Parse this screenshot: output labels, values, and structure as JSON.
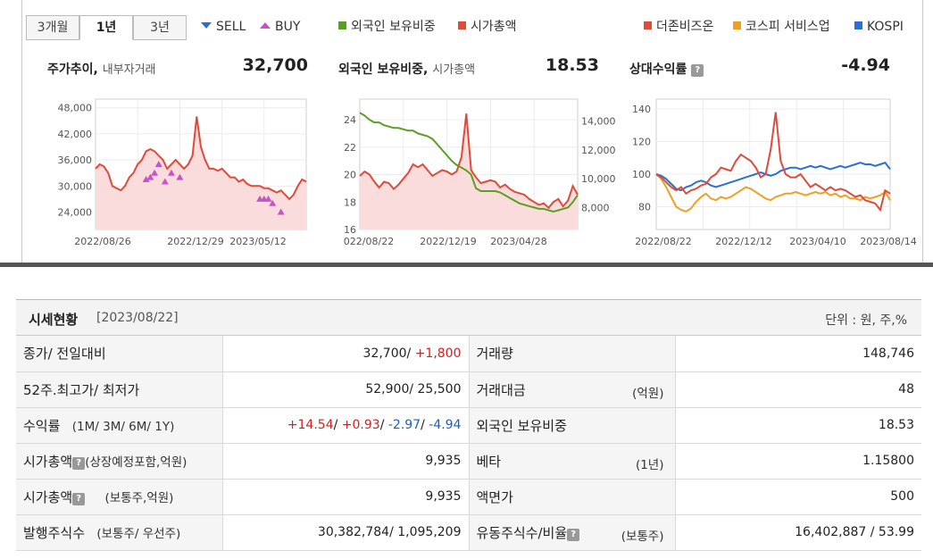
{
  "tabs": [
    {
      "label": "3개월",
      "active": false
    },
    {
      "label": "1년",
      "active": true
    },
    {
      "label": "3년",
      "active": false
    }
  ],
  "legend_left": [
    {
      "label": "SELL",
      "icon": "sell-triangle-icon",
      "color": "#2a6fd6"
    },
    {
      "label": "BUY",
      "icon": "buy-triangle-icon",
      "color": "#c455c8"
    },
    {
      "label": "외국인 보유비중",
      "color": "#5aa020"
    },
    {
      "label": "시가총액",
      "color": "#e04a3a"
    }
  ],
  "legend_right": [
    {
      "label": "더존비즈온",
      "color": "#e04a3a"
    },
    {
      "label": "코스피 서비스업",
      "color": "#f0a020"
    },
    {
      "label": "KOSPI",
      "color": "#2a6fd6"
    }
  ],
  "cards": [
    {
      "title": "주가추이,",
      "subtitle": "내부자거래",
      "value": "32,700"
    },
    {
      "title": "외국인 보유비중,",
      "subtitle": "시가총액",
      "value": "18.53"
    },
    {
      "title": "상대수익률",
      "subtitle": "",
      "value": "-4.94",
      "help_icon": "?"
    }
  ],
  "chart_data": [
    {
      "type": "area",
      "series": [
        {
          "color": "#e04a3a",
          "values": [
            34,
            35,
            34.5,
            33,
            30,
            29.5,
            29,
            30,
            32,
            33,
            35,
            36,
            38,
            38.5,
            38,
            37,
            36,
            34,
            35,
            36,
            35,
            34,
            35,
            37,
            46,
            39,
            36,
            34,
            34,
            33.5,
            34,
            33,
            32,
            32,
            31,
            31.5,
            30.5,
            30,
            30,
            30,
            29.5,
            29.5,
            29,
            28.5,
            29,
            28,
            27,
            28,
            30,
            31.5,
            31
          ]
        }
      ],
      "buy_markers": [
        [
          0.24,
          31.5
        ],
        [
          0.26,
          32
        ],
        [
          0.28,
          33
        ],
        [
          0.3,
          35
        ],
        [
          0.33,
          31
        ],
        [
          0.36,
          33
        ],
        [
          0.4,
          32
        ],
        [
          0.78,
          27
        ],
        [
          0.8,
          27
        ],
        [
          0.82,
          27
        ],
        [
          0.84,
          26
        ],
        [
          0.88,
          24
        ]
      ],
      "y_ticks": [
        "48,000",
        "42,000",
        "36,000",
        "30,000",
        "24,000"
      ],
      "y_values": [
        48,
        42,
        36,
        30,
        24
      ],
      "ylim": [
        20,
        50
      ],
      "x_ticks": [
        "2022/08/26",
        "2022/12/29",
        "2023/05/12"
      ]
    },
    {
      "type": "line",
      "series": [
        {
          "color": "#5aa020",
          "axis": "left",
          "values": [
            24.5,
            24.3,
            24.0,
            23.8,
            23.8,
            23.6,
            23.5,
            23.4,
            23.4,
            23.3,
            23.2,
            23.2,
            23.0,
            22.9,
            22.8,
            22.6,
            22.2,
            21.8,
            21.4,
            21.0,
            20.7,
            20.5,
            20.3,
            20.0,
            19.0,
            18.8,
            18.8,
            18.8,
            18.8,
            18.7,
            18.5,
            18.3,
            18.1,
            17.9,
            17.8,
            17.7,
            17.6,
            17.5,
            17.5,
            17.4,
            17.3,
            17.4,
            17.5,
            17.6,
            18.0,
            18.5
          ]
        },
        {
          "color": "#e04a3a",
          "axis": "right",
          "values": [
            10.2,
            10.5,
            10.3,
            9.8,
            9.4,
            9.8,
            9.7,
            9.3,
            9.6,
            10.0,
            10.4,
            11.0,
            10.8,
            11.0,
            10.6,
            10.2,
            10.4,
            10.6,
            10.5,
            10.3,
            10.5,
            11.5,
            14.5,
            10.6,
            10.1,
            9.7,
            9.8,
            9.9,
            9.8,
            9.4,
            9.6,
            9.3,
            9.1,
            9.0,
            8.9,
            8.6,
            8.4,
            8.2,
            8.3,
            8.0,
            8.4,
            8.6,
            8.1,
            8.5,
            9.5,
            8.9
          ]
        }
      ],
      "y_left_ticks": [
        "24",
        "22",
        "20",
        "18",
        "16"
      ],
      "y_left_values": [
        24,
        22,
        20,
        18,
        16
      ],
      "ylim_left": [
        16,
        25.5
      ],
      "y_right_ticks": [
        "14,000",
        "12,000",
        "10,000",
        "8,000"
      ],
      "y_right_values": [
        14,
        12,
        10,
        8
      ],
      "ylim_right": [
        6.5,
        15.5
      ],
      "x_ticks": [
        "022/08/22",
        "2022/12/19",
        "2023/04/28"
      ]
    },
    {
      "type": "line",
      "series": [
        {
          "name": "더존비즈온",
          "color": "#e04a3a",
          "values": [
            100,
            98,
            95,
            92,
            90,
            92,
            88,
            90,
            91,
            93,
            94,
            98,
            100,
            104,
            103,
            102,
            108,
            112,
            110,
            108,
            104,
            98,
            100,
            115,
            138,
            108,
            100,
            98,
            98,
            100,
            96,
            92,
            94,
            92,
            90,
            92,
            90,
            91,
            90,
            88,
            86,
            87,
            84,
            83,
            82,
            78,
            90,
            88
          ]
        },
        {
          "name": "코스피 서비스업",
          "color": "#f0a020",
          "values": [
            100,
            97,
            92,
            86,
            80,
            78,
            77,
            79,
            83,
            86,
            88,
            85,
            84,
            86,
            85,
            86,
            88,
            90,
            92,
            91,
            89,
            87,
            85,
            84,
            86,
            87,
            88,
            88,
            89,
            88,
            87,
            88,
            89,
            88,
            89,
            87,
            88,
            86,
            87,
            85,
            85,
            84,
            86,
            85,
            86,
            87,
            89,
            84
          ]
        },
        {
          "name": "KOSPI",
          "color": "#2a6fd6",
          "values": [
            100,
            99,
            97,
            94,
            91,
            90,
            92,
            93,
            95,
            96,
            95,
            93,
            92,
            93,
            94,
            95,
            96,
            97,
            98,
            99,
            100,
            101,
            100,
            99,
            100,
            102,
            103,
            104,
            104,
            103,
            104,
            105,
            104,
            105,
            104,
            103,
            104,
            105,
            104,
            105,
            106,
            107,
            106,
            106,
            105,
            106,
            107,
            103
          ]
        }
      ],
      "y_ticks": [
        "140",
        "120",
        "100",
        "80"
      ],
      "y_values": [
        140,
        120,
        100,
        80
      ],
      "ylim": [
        66,
        146
      ],
      "x_ticks": [
        "2022/08/22",
        "2022/12/12",
        "2023/04/10",
        "2023/08/14"
      ]
    }
  ],
  "table": {
    "title": "시세현황",
    "date": "[2023/08/22]",
    "unit": "단위 : 원, 주,%",
    "rows": [
      {
        "lbl_main": "종가/ 전일대비",
        "lbl_sub": "",
        "val_base": "32,700/ ",
        "val_change": "+1,800",
        "lbl2_main": "거래량",
        "lbl2_sub": "",
        "lbl2_right": "",
        "val2": "148,746"
      },
      {
        "lbl_main": "52주.최고가/ 최저가",
        "lbl_sub": "",
        "val": "52,900/ 25,500",
        "lbl2_main": "거래대금",
        "lbl2_sub": "",
        "lbl2_right": "(억원)",
        "val2": "48"
      },
      {
        "lbl_main": "수익률",
        "lbl_sub": "(1M/ 3M/ 6M/ 1Y)",
        "returns": [
          "+14.54",
          "+0.93",
          "-2.97",
          "-4.94"
        ],
        "lbl2_main": "외국인 보유비중",
        "lbl2_sub": "",
        "lbl2_right": "",
        "val2": "18.53"
      },
      {
        "lbl_main": "시가총액",
        "lbl_sub": "(상장예정포함,억원)",
        "help_icon": "?",
        "val": "9,935",
        "lbl2_main": "베타",
        "lbl2_sub": "",
        "lbl2_right": "(1년)",
        "val2": "1.15800"
      },
      {
        "lbl_main": "시가총액",
        "lbl_sub": "(보통주,억원)",
        "help_icon": "?",
        "val": "9,935",
        "lbl2_main": "액면가",
        "lbl2_sub": "",
        "lbl2_right": "",
        "val2": "500"
      },
      {
        "lbl_main": "발행주식수",
        "lbl_sub": "(보통주/ 우선주)",
        "val": "30,382,784/ 1,095,209",
        "lbl2_main": "유동주식수/비율",
        "lbl2_sub": "",
        "help_icon": "?",
        "lbl2_right": "(보통주)",
        "val2": "16,402,887 / 53.99"
      }
    ]
  }
}
